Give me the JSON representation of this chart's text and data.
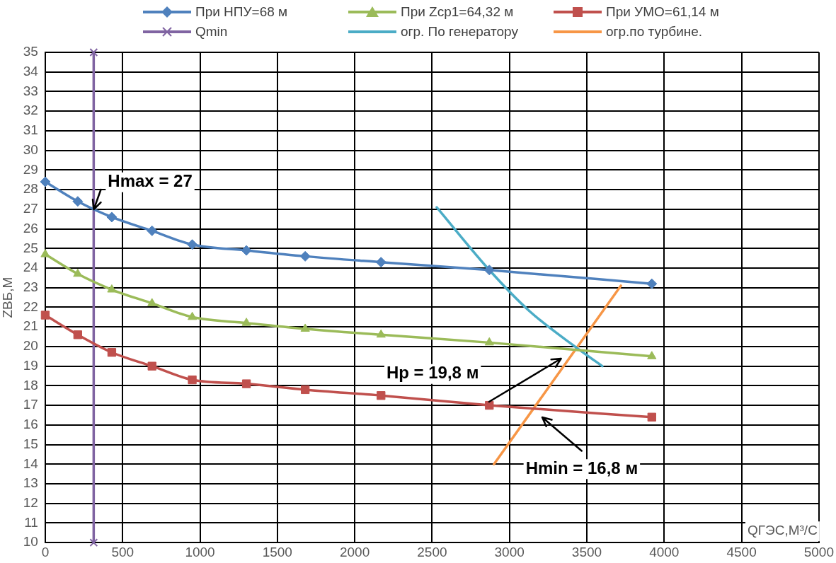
{
  "chart_data": {
    "type": "line",
    "ylabel": "ZВБ,М",
    "xlabel": "QГЭС,М³/С",
    "xlim": [
      0,
      5000
    ],
    "xticks": [
      0,
      500,
      1000,
      1500,
      2000,
      2500,
      3000,
      3500,
      4000,
      4500,
      5000
    ],
    "ylim": [
      10,
      35
    ],
    "yticks": [
      10,
      11,
      12,
      13,
      14,
      15,
      16,
      17,
      18,
      19,
      20,
      21,
      22,
      23,
      24,
      25,
      26,
      27,
      28,
      29,
      30,
      31,
      32,
      33,
      34,
      35
    ],
    "grid": true,
    "legend": "top",
    "line_style": "solid",
    "series": [
      {
        "name": "При НПУ=68 м",
        "color": "#4f81bd",
        "marker": "diamond",
        "x": [
          0,
          210,
          430,
          690,
          950,
          1300,
          1680,
          2170,
          2870,
          3920
        ],
        "values": [
          28.4,
          27.4,
          26.6,
          25.9,
          25.2,
          24.9,
          24.6,
          24.3,
          23.9,
          23.2
        ]
      },
      {
        "name": "При Zср1=64,32 м",
        "color": "#9bbb59",
        "marker": "triangle",
        "x": [
          0,
          210,
          430,
          690,
          950,
          1300,
          1680,
          2170,
          2870,
          3920
        ],
        "values": [
          24.7,
          23.7,
          22.9,
          22.2,
          21.5,
          21.2,
          20.9,
          20.6,
          20.2,
          19.5
        ]
      },
      {
        "name": "При УМО=61,14 м",
        "color": "#c0504d",
        "marker": "square",
        "x": [
          0,
          210,
          430,
          690,
          950,
          1300,
          1680,
          2170,
          2870,
          3920
        ],
        "values": [
          21.6,
          20.6,
          19.7,
          19.0,
          18.3,
          18.1,
          17.8,
          17.5,
          17.0,
          16.4
        ]
      },
      {
        "name": "Qmin",
        "color": "#8064a2",
        "marker": "cross",
        "x": [
          313,
          313
        ],
        "values": [
          10,
          35
        ]
      },
      {
        "name": "огр. По генератору",
        "color": "#4bacc6",
        "marker": "none",
        "x": [
          2530,
          2870,
          3130,
          3440,
          3600
        ],
        "values": [
          27.1,
          23.9,
          21.8,
          19.9,
          19.0
        ]
      },
      {
        "name": "огр.по турбине.",
        "color": "#f79646",
        "marker": "none",
        "x": [
          2900,
          3720
        ],
        "values": [
          14.0,
          23.1
        ]
      }
    ],
    "annotations": [
      {
        "text": "Hmax = 27",
        "x": 313,
        "y": 27
      },
      "Hp = 19,8 м",
      "Hmin = 16,8 м"
    ]
  }
}
